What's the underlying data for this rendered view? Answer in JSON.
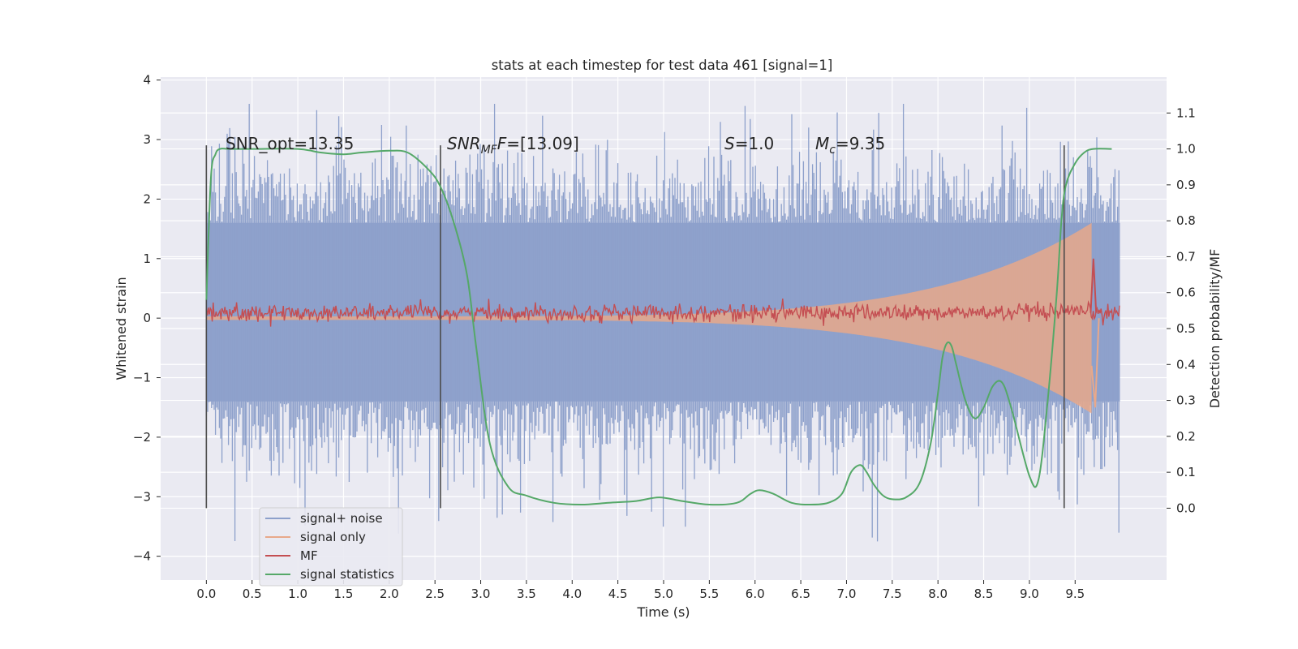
{
  "chart_data": {
    "type": "line",
    "title": "stats at each timestep for test data 461 [signal=1]",
    "xlabel": "Time (s)",
    "ylabel": "Whitened strain",
    "ylabel_right": "Detection probability/MF",
    "xlim": [
      -0.5,
      10.5
    ],
    "ylim": [
      -4.4,
      4.05
    ],
    "ylim_right": [
      -0.2,
      1.2
    ],
    "x_ticks": [
      "0.0",
      "0.5",
      "1.0",
      "1.5",
      "2.0",
      "2.5",
      "3.0",
      "3.5",
      "4.0",
      "4.5",
      "5.0",
      "5.5",
      "6.0",
      "6.5",
      "7.0",
      "7.5",
      "8.0",
      "8.5",
      "9.0",
      "9.5"
    ],
    "y_ticks": [
      "4",
      "3",
      "2",
      "1",
      "0",
      "−1",
      "−2",
      "−3",
      "−4"
    ],
    "y_ticks_right": [
      "1.1",
      "1.0",
      "0.9",
      "0.8",
      "0.7",
      "0.6",
      "0.5",
      "0.4",
      "0.3",
      "0.2",
      "0.1",
      "0.0"
    ],
    "grid": true,
    "legend_position": "lower-left",
    "legend": [
      "signal+ noise",
      "signal only",
      "MF",
      "signal statistics"
    ],
    "annotations": {
      "snr_opt": "SNR_opt=13.35",
      "snr_mf_math": "SNR",
      "snr_mf_sub": "MF",
      "snr_mf_text": "=[13.09]",
      "s_math": "S",
      "s_text": "=1.0",
      "mc_math": "M",
      "mc_sub": "c",
      "mc_text": "=9.35"
    },
    "vertical_lines_x": [
      0.0,
      2.56,
      9.38
    ],
    "colors": {
      "noise": "#8da0cb",
      "signal": "#e8a88a",
      "mf": "#c44e52",
      "stat": "#55a868",
      "background": "#eaeaf2",
      "vline": "#4a4a4a"
    },
    "series": [
      {
        "name": "signal statistics",
        "axis": "right",
        "x": [
          0.0,
          0.05,
          0.1,
          0.15,
          0.25,
          0.5,
          1.0,
          1.25,
          1.5,
          1.7,
          2.0,
          2.2,
          2.4,
          2.55,
          2.7,
          2.85,
          2.95,
          3.1,
          3.3,
          3.5,
          3.8,
          4.1,
          4.4,
          4.7,
          4.95,
          5.2,
          5.5,
          5.8,
          5.95,
          6.05,
          6.2,
          6.4,
          6.6,
          6.8,
          6.95,
          7.05,
          7.15,
          7.22,
          7.3,
          7.4,
          7.5,
          7.65,
          7.8,
          7.92,
          8.0,
          8.05,
          8.1,
          8.15,
          8.2,
          8.3,
          8.4,
          8.5,
          8.6,
          8.7,
          8.8,
          9.0,
          9.1,
          9.2,
          9.3,
          9.35,
          9.4,
          9.5,
          9.6,
          9.7,
          9.9
        ],
        "y": [
          0.58,
          0.92,
          0.985,
          1.0,
          1.0,
          1.0,
          1.0,
          0.99,
          0.985,
          0.99,
          0.995,
          0.99,
          0.95,
          0.9,
          0.8,
          0.65,
          0.45,
          0.18,
          0.06,
          0.035,
          0.015,
          0.01,
          0.015,
          0.02,
          0.03,
          0.02,
          0.01,
          0.015,
          0.04,
          0.05,
          0.04,
          0.015,
          0.01,
          0.015,
          0.04,
          0.1,
          0.12,
          0.1,
          0.065,
          0.035,
          0.025,
          0.03,
          0.07,
          0.18,
          0.32,
          0.42,
          0.46,
          0.45,
          0.4,
          0.3,
          0.25,
          0.28,
          0.34,
          0.35,
          0.28,
          0.09,
          0.08,
          0.3,
          0.6,
          0.8,
          0.9,
          0.96,
          0.99,
          1.0,
          1.0
        ]
      },
      {
        "name": "MF",
        "axis": "left",
        "baseline": 0.09,
        "noise_amplitude": 0.07,
        "peak": {
          "x": 9.7,
          "y": 1.0
        }
      },
      {
        "name": "signal only",
        "axis": "left",
        "amplitude_start": 0.03,
        "amplitude_end": 1.6,
        "merger_x": 9.68,
        "ringdown_min": -1.5
      },
      {
        "name": "signal+ noise",
        "axis": "left",
        "x_start": 0.0,
        "x_end": 9.99,
        "dense_band_upper": 1.6,
        "dense_band_lower": -1.4,
        "max_peak": 3.6,
        "min_trough": -4.0
      }
    ]
  }
}
